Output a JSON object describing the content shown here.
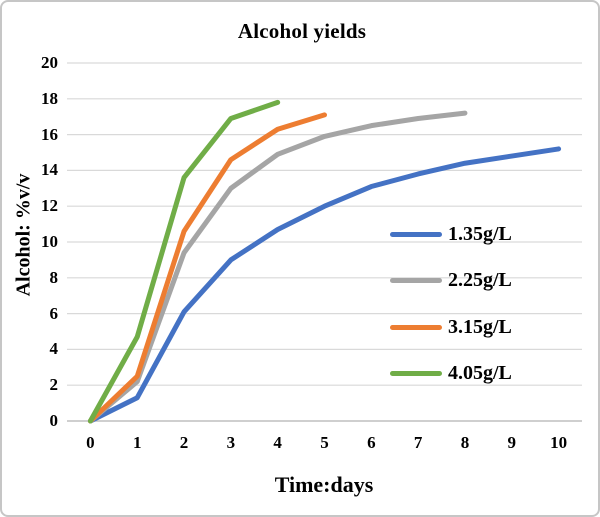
{
  "chart_data": {
    "type": "line",
    "title": "Alcohol yields",
    "xlabel": "Time:days",
    "ylabel": "Alcohol: %v/v",
    "xlim": [
      0,
      10
    ],
    "ylim": [
      0,
      20
    ],
    "xticks": [
      0,
      1,
      2,
      3,
      4,
      5,
      6,
      7,
      8,
      9,
      10
    ],
    "yticks": [
      0,
      2,
      4,
      6,
      8,
      10,
      12,
      14,
      16,
      18,
      20
    ],
    "grid": true,
    "grid_color": "#D9D9D9",
    "axis_line_color": "#BFBFBF",
    "legend_position": "right-middle",
    "series": [
      {
        "name": "1.35g/L",
        "color": "#4472C4",
        "x": [
          0,
          1,
          2,
          3,
          4,
          5,
          6,
          7,
          8,
          9,
          10
        ],
        "y": [
          0,
          1.3,
          6.1,
          9.0,
          10.7,
          12.0,
          13.1,
          13.8,
          14.4,
          14.8,
          15.2
        ]
      },
      {
        "name": "2.25g/L",
        "color": "#A5A5A5",
        "x": [
          0,
          1,
          2,
          3,
          4,
          5,
          6,
          7,
          8
        ],
        "y": [
          0,
          2.2,
          9.4,
          13.0,
          14.9,
          15.9,
          16.5,
          16.9,
          17.2
        ]
      },
      {
        "name": "3.15g/L",
        "color": "#ED7D31",
        "x": [
          0,
          1,
          2,
          3,
          4,
          5
        ],
        "y": [
          0,
          2.5,
          10.6,
          14.6,
          16.3,
          17.1
        ]
      },
      {
        "name": "4.05g/L",
        "color": "#70AD47",
        "x": [
          0,
          1,
          2,
          3,
          4
        ],
        "y": [
          0,
          4.7,
          13.6,
          16.9,
          17.8
        ]
      }
    ]
  }
}
